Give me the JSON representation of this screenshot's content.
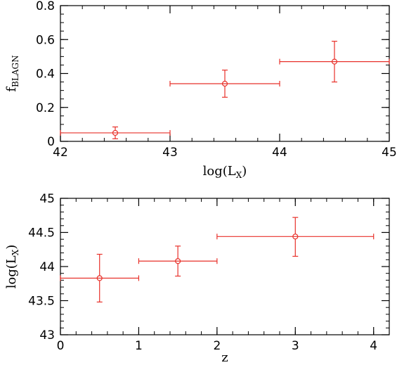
{
  "chart_data": [
    {
      "type": "scatter",
      "title": "",
      "xlabel": "log(L",
      "xlabel_sub": "X",
      "xlabel_suffix": ")",
      "ylabel": "f",
      "ylabel_sub": "BLAGN",
      "xlim": [
        42,
        45
      ],
      "ylim": [
        0,
        0.8
      ],
      "xticks": [
        "42",
        "43",
        "44",
        "45"
      ],
      "yticks": [
        "0",
        "0.2",
        "0.4",
        "0.6",
        "0.8"
      ],
      "color": "#e8312a",
      "grid": false,
      "points": [
        {
          "x": 42.5,
          "y": 0.05,
          "xerr": [
            42,
            43
          ],
          "yerr": [
            0.015,
            0.085
          ]
        },
        {
          "x": 43.5,
          "y": 0.34,
          "xerr": [
            43,
            44
          ],
          "yerr": [
            0.26,
            0.42
          ]
        },
        {
          "x": 44.5,
          "y": 0.47,
          "xerr": [
            44,
            45
          ],
          "yerr": [
            0.35,
            0.59
          ]
        }
      ]
    },
    {
      "type": "scatter",
      "title": "",
      "xlabel": "z",
      "ylabel": "log(L",
      "ylabel_sub": "X",
      "ylabel_suffix": ")",
      "xlim": [
        0,
        4.2
      ],
      "ylim": [
        43,
        45
      ],
      "xticks": [
        "0",
        "1",
        "2",
        "3",
        "4"
      ],
      "yticks": [
        "43",
        "43.5",
        "44",
        "44.5",
        "45"
      ],
      "color": "#e8312a",
      "grid": false,
      "points": [
        {
          "x": 0.5,
          "y": 43.83,
          "xerr": [
            0,
            1
          ],
          "yerr": [
            43.48,
            44.18
          ]
        },
        {
          "x": 1.5,
          "y": 44.08,
          "xerr": [
            1,
            2
          ],
          "yerr": [
            43.86,
            44.3
          ]
        },
        {
          "x": 3.0,
          "y": 44.44,
          "xerr": [
            2,
            4
          ],
          "yerr": [
            44.15,
            44.72
          ]
        }
      ]
    }
  ]
}
